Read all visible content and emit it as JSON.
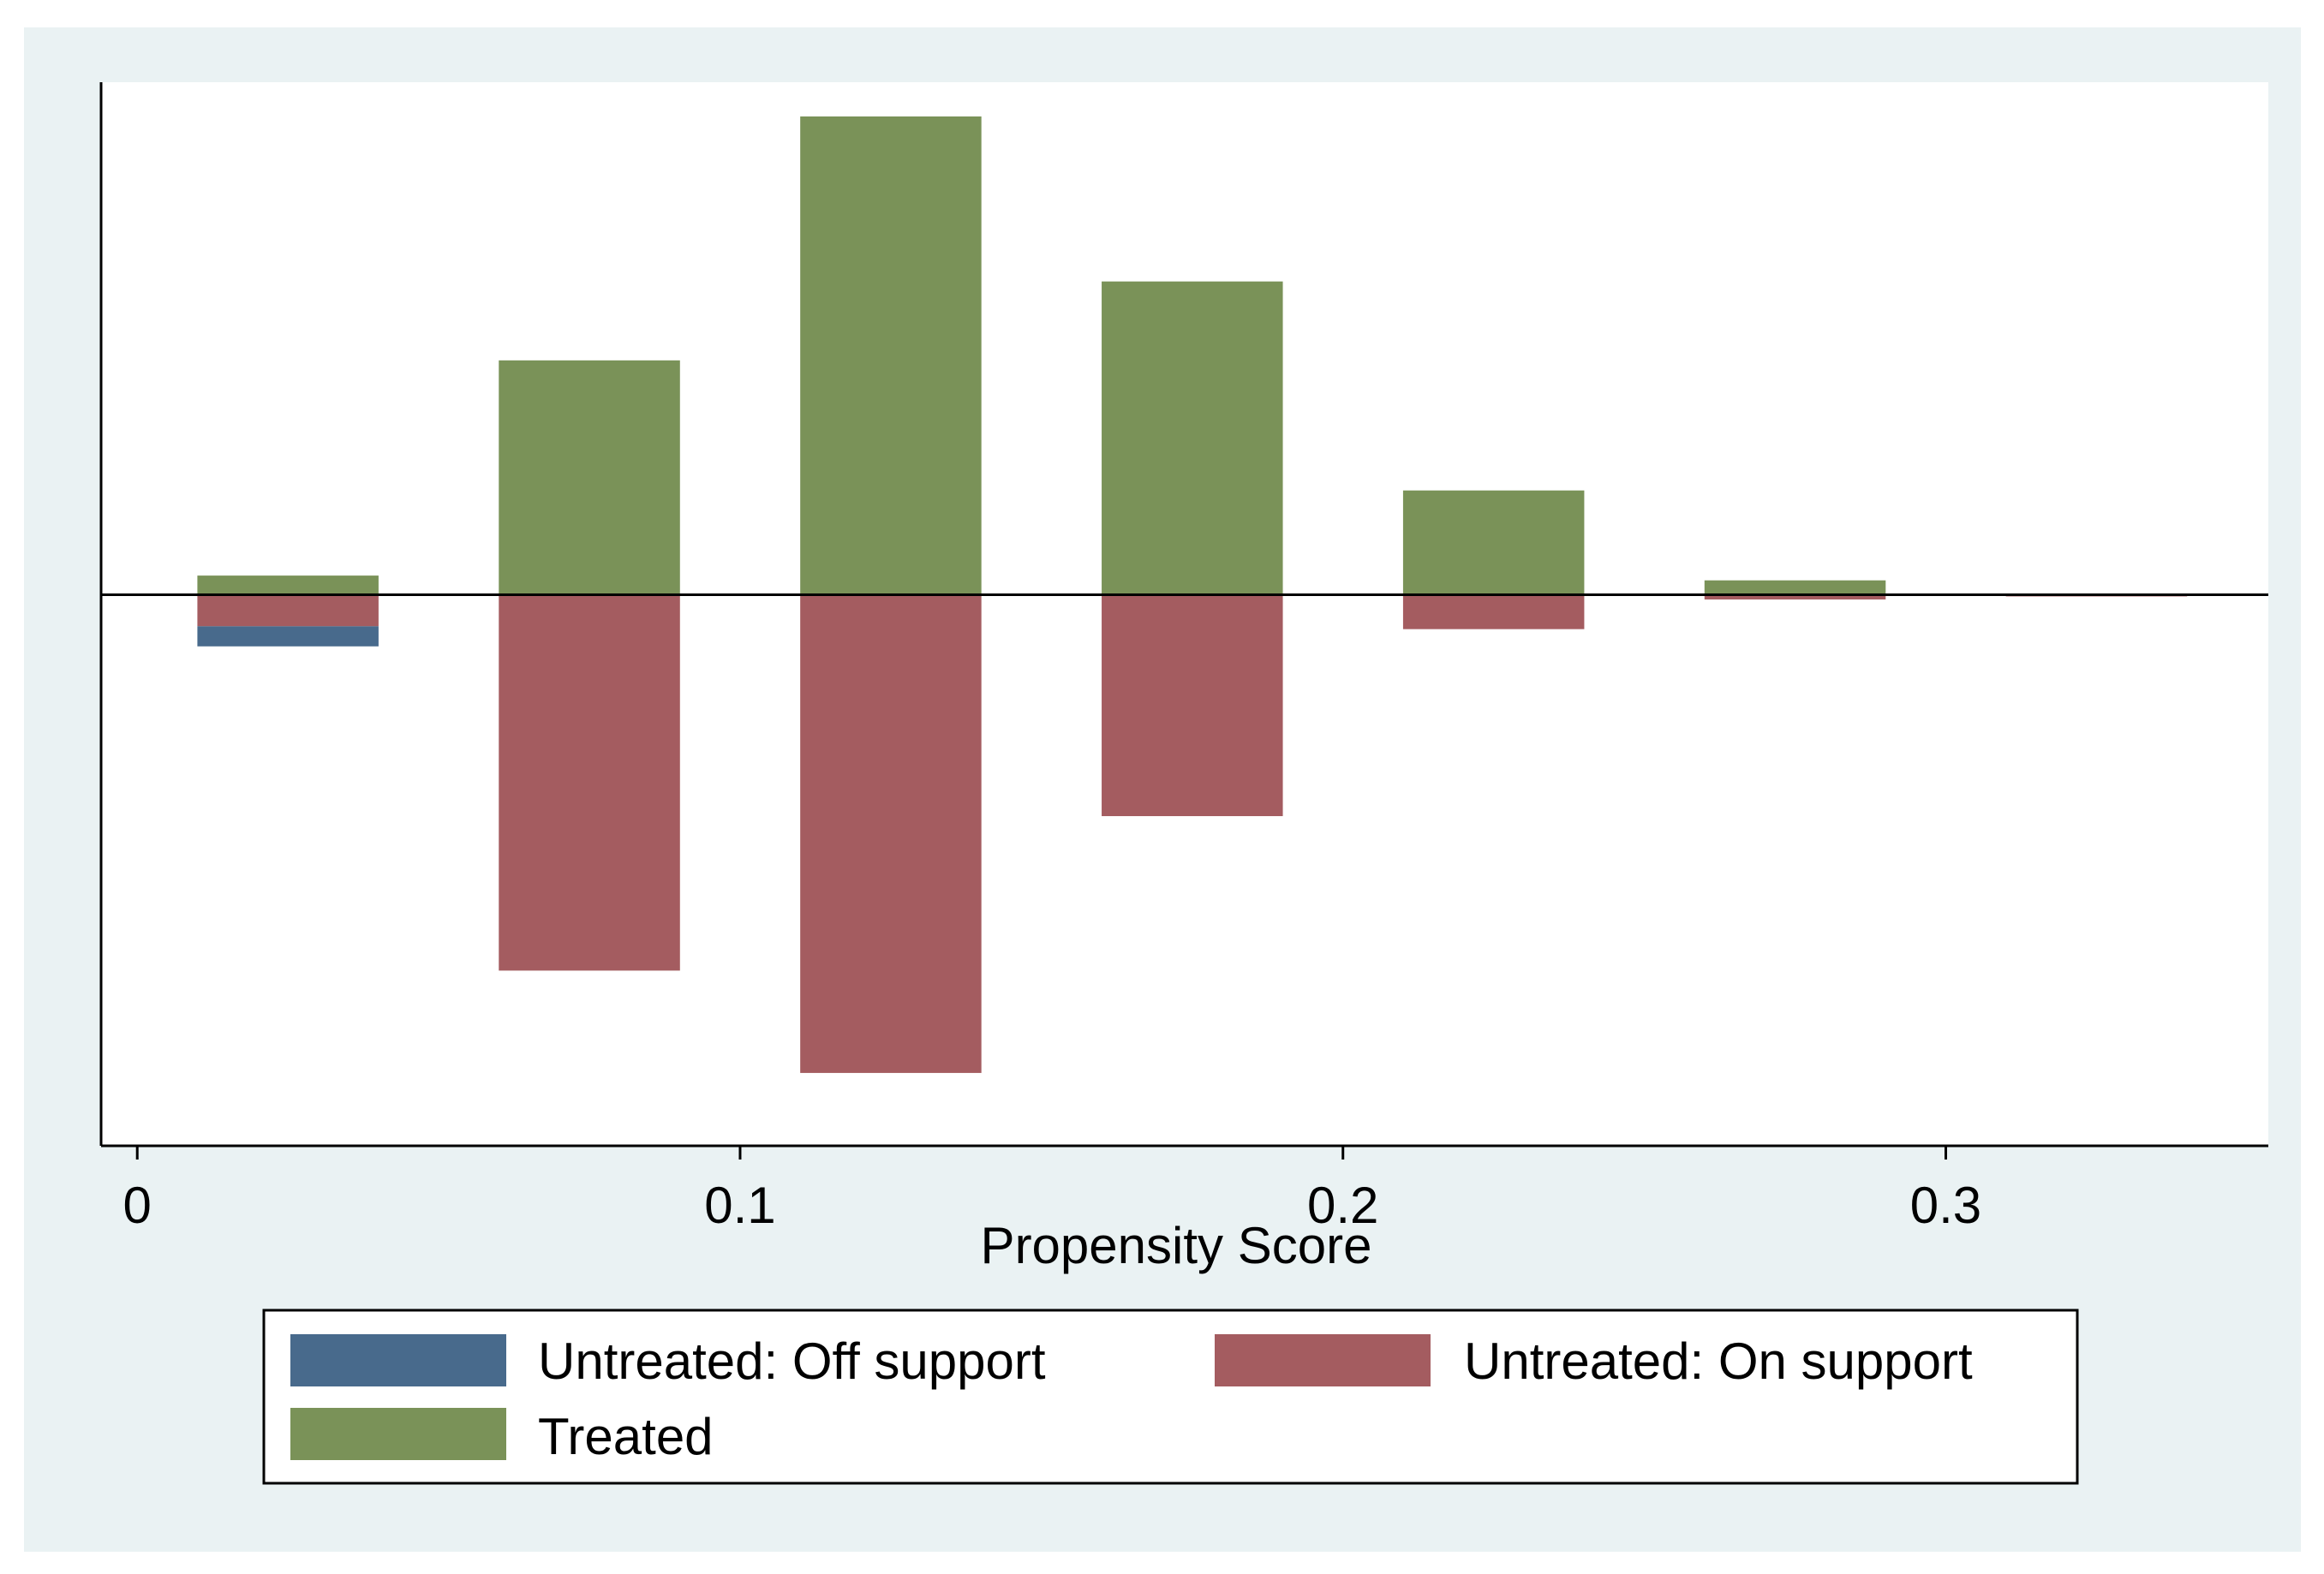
{
  "chart_data": {
    "type": "bar",
    "title": "",
    "xlabel": "Propensity Score",
    "ylabel": "",
    "xlim": [
      -0.006,
      0.3535
    ],
    "ylim": [
      -1.07,
      1.0
    ],
    "bin_width": 0.04,
    "x_ticks": [
      0,
      0.1,
      0.2,
      0.3
    ],
    "x_tick_labels": [
      "0",
      "0.1",
      "0.2",
      "0.3"
    ],
    "series": [
      {
        "name": "Treated",
        "color": "#7a9258",
        "direction": "up",
        "bins": [
          0.025,
          0.075,
          0.125,
          0.175,
          0.225,
          0.275,
          0.325
        ],
        "values": [
          0.04,
          0.49,
          1.0,
          0.655,
          0.218,
          0.03,
          0.0
        ]
      },
      {
        "name": "Untreated: On support",
        "color": "#a45c60",
        "direction": "down",
        "bins": [
          0.025,
          0.075,
          0.125,
          0.175,
          0.225,
          0.275,
          0.325
        ],
        "values": [
          0.066,
          0.786,
          1.0,
          0.463,
          0.072,
          0.01,
          0.003
        ]
      },
      {
        "name": "Untreated: Off support",
        "color": "#486a8c",
        "direction": "down",
        "stacked_below": "Untreated: On support",
        "bins": [
          0.025
        ],
        "values": [
          0.042
        ]
      }
    ],
    "legend": {
      "position": "bottom",
      "entries": [
        {
          "label": "Untreated: Off support",
          "color": "#486a8c"
        },
        {
          "label": "Untreated: On support",
          "color": "#a45c60"
        },
        {
          "label": "Treated",
          "color": "#7a9258"
        }
      ]
    },
    "grid": false
  }
}
